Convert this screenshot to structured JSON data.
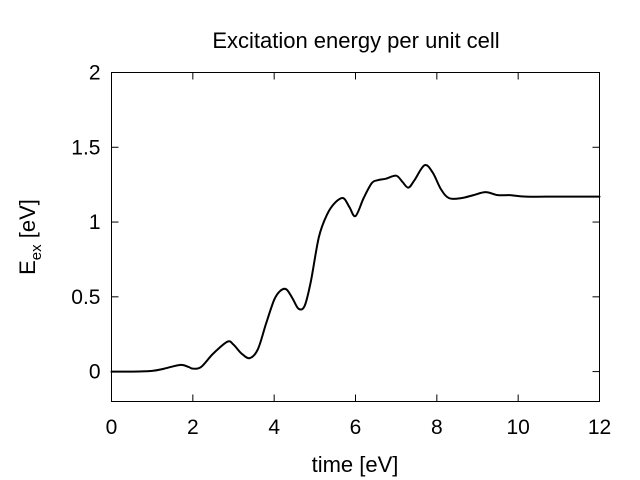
{
  "chart_data": {
    "type": "line",
    "title": "Excitation energy per unit cell",
    "xlabel": "time [eV]",
    "ylabel_main": "E",
    "ylabel_sub": "ex",
    "ylabel_unit": " [eV]",
    "xlim": [
      0,
      12
    ],
    "ylim": [
      -0.2,
      2
    ],
    "xticks": [
      0,
      2,
      4,
      6,
      8,
      10,
      12
    ],
    "xtick_labels": [
      "0",
      "2",
      "4",
      "6",
      "8",
      "10",
      "12"
    ],
    "yticks": [
      0,
      0.5,
      1,
      1.5,
      2
    ],
    "ytick_labels": [
      "0",
      "0.5",
      "1",
      "1.5",
      "2"
    ],
    "grid": false,
    "series": [
      {
        "color": "#000000",
        "x": [
          0,
          0.5,
          1.0,
          1.3,
          1.7,
          1.9,
          2.0,
          2.2,
          2.5,
          2.85,
          3.0,
          3.2,
          3.4,
          3.6,
          3.8,
          4.0,
          4.15,
          4.3,
          4.45,
          4.6,
          4.75,
          4.9,
          5.1,
          5.3,
          5.5,
          5.7,
          5.85,
          6.0,
          6.2,
          6.4,
          6.55,
          6.75,
          7.0,
          7.15,
          7.3,
          7.45,
          7.7,
          7.9,
          8.1,
          8.3,
          8.6,
          8.9,
          9.2,
          9.5,
          9.8,
          10.2,
          11.0,
          12.0
        ],
        "y": [
          0.0,
          0.0,
          0.005,
          0.02,
          0.045,
          0.03,
          0.02,
          0.03,
          0.12,
          0.2,
          0.18,
          0.12,
          0.09,
          0.15,
          0.32,
          0.48,
          0.54,
          0.55,
          0.49,
          0.42,
          0.44,
          0.6,
          0.9,
          1.05,
          1.13,
          1.16,
          1.1,
          1.04,
          1.16,
          1.26,
          1.28,
          1.29,
          1.31,
          1.27,
          1.23,
          1.28,
          1.38,
          1.33,
          1.22,
          1.16,
          1.16,
          1.18,
          1.2,
          1.18,
          1.18,
          1.17,
          1.17,
          1.17
        ]
      }
    ]
  }
}
